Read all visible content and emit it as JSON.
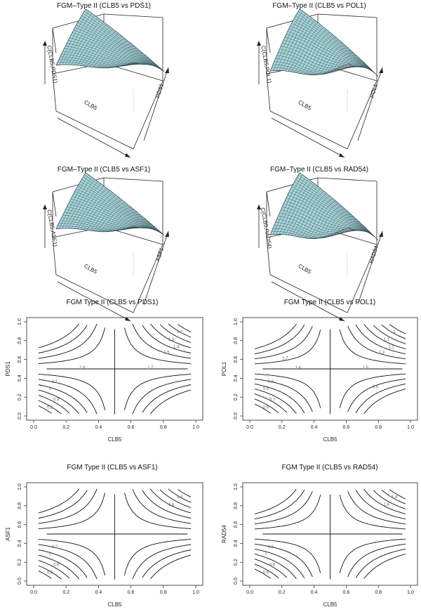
{
  "colors": {
    "surface": "#a8d3d8",
    "mesh": "#1f3a40",
    "ink": "#111111",
    "contour_label": "#666666"
  },
  "chart_data": [
    {
      "type": "surface",
      "title": "FGM–Type II (CLB5 vs PDS1)",
      "xlabel": "CLB5",
      "ylabel": "PDS1",
      "zlabel": "C(CLB5,PDS1)"
    },
    {
      "type": "surface",
      "title": "FGM–Type II (CLB5 vs POL1)",
      "xlabel": "CLB5",
      "ylabel": "POL1",
      "zlabel": "C(CLB5,POL1)"
    },
    {
      "type": "surface",
      "title": "FGM–Type II (CLB5 vs ASF1)",
      "xlabel": "CLB5",
      "ylabel": "ASF1",
      "zlabel": "C(CLB5,ASF1)"
    },
    {
      "type": "surface",
      "title": "FGM–Type II (CLB5 vs RAD54)",
      "xlabel": "CLB5",
      "ylabel": "RAD54",
      "zlabel": "C(CLB5,RAD54)"
    },
    {
      "type": "contour",
      "title": "FGM Type II (CLB5 vs PDS1)",
      "xlabel": "CLB5",
      "ylabel": "PDS1",
      "xlim": [
        0,
        1
      ],
      "ylim": [
        0,
        1
      ],
      "xticks": [
        "0.0",
        "0.2",
        "0.4",
        "0.6",
        "0.8",
        "1.0"
      ],
      "yticks": [
        "0.0",
        "0.2",
        "0.4",
        "0.6",
        "0.8",
        "1.0"
      ],
      "levels": [
        "0.8",
        "0.9",
        "1",
        "1.1",
        "1.2",
        "1.3",
        "1.4",
        "1.5",
        "1.6",
        "1.7"
      ]
    },
    {
      "type": "contour",
      "title": "FGM Type II (CLB5 vs POL1)",
      "xlabel": "CLB5",
      "ylabel": "POL1",
      "xlim": [
        0,
        1
      ],
      "ylim": [
        0,
        1
      ],
      "xticks": [
        "0.0",
        "0.2",
        "0.4",
        "0.6",
        "0.8",
        "1.0"
      ],
      "yticks": [
        "0.0",
        "0.2",
        "0.4",
        "0.6",
        "0.8",
        "1.0"
      ],
      "levels": [
        "0.6",
        "0.7",
        "0.8",
        "0.9",
        "1",
        "1.1",
        "1.2",
        "1.3",
        "1.4",
        "1.5",
        "1.6",
        "1.7"
      ]
    },
    {
      "type": "contour",
      "title": "FGM Type II (CLB5 vs ASF1)",
      "xlabel": "CLB5",
      "ylabel": "ASF1",
      "xlim": [
        0,
        1
      ],
      "ylim": [
        0,
        1
      ],
      "xticks": [
        "0.0",
        "0.2",
        "0.4",
        "0.6",
        "0.8",
        "1.0"
      ],
      "yticks": [
        "0.0",
        "0.2",
        "0.4",
        "0.6",
        "0.8",
        "1.0"
      ],
      "levels": [
        "0.6",
        "0.8",
        "1",
        "1.2",
        "1.4",
        "1.6"
      ]
    },
    {
      "type": "contour",
      "title": "FGM Type II (CLB5 vs RAD54)",
      "xlabel": "CLB5",
      "ylabel": "RAD54",
      "xlim": [
        0,
        1
      ],
      "ylim": [
        0,
        1
      ],
      "xticks": [
        "0.0",
        "0.2",
        "0.4",
        "0.6",
        "0.8",
        "1.0"
      ],
      "yticks": [
        "0.0",
        "0.2",
        "0.4",
        "0.6",
        "0.8",
        "1.0"
      ],
      "levels": [
        "0.6",
        "0.8",
        "1",
        "1.2",
        "1.4",
        "1.6"
      ]
    }
  ]
}
